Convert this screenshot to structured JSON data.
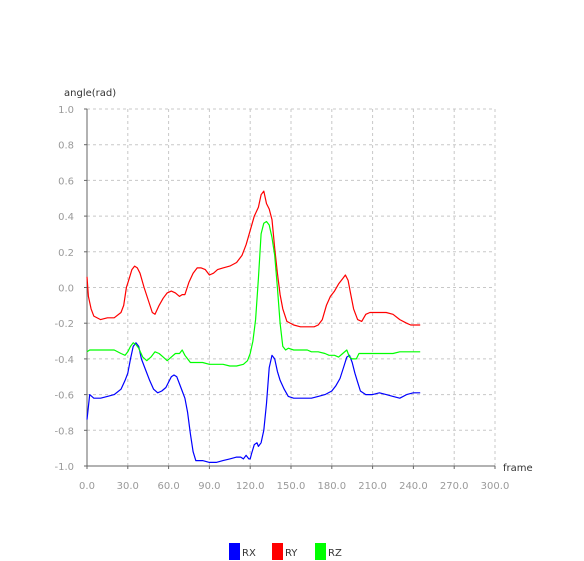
{
  "chart_data": {
    "type": "line",
    "xlabel": "frame",
    "ylabel": "angle(rad)",
    "xlim": [
      0,
      300
    ],
    "ylim": [
      -1.0,
      1.0
    ],
    "x_ticks": [
      "0.0",
      "30.0",
      "60.0",
      "90.0",
      "120.0",
      "150.0",
      "180.0",
      "210.0",
      "240.0",
      "270.0",
      "300.0"
    ],
    "y_ticks": [
      "-1.0",
      "-0.8",
      "-0.6",
      "-0.4",
      "-0.2",
      "0.0",
      "0.2",
      "0.4",
      "0.6",
      "0.8",
      "1.0"
    ],
    "grid": true,
    "legend_position": "bottom",
    "series": [
      {
        "name": "RX",
        "color": "#0000ff",
        "points": [
          [
            0,
            -0.74
          ],
          [
            2,
            -0.6
          ],
          [
            5,
            -0.62
          ],
          [
            10,
            -0.62
          ],
          [
            15,
            -0.61
          ],
          [
            20,
            -0.6
          ],
          [
            25,
            -0.57
          ],
          [
            28,
            -0.52
          ],
          [
            30,
            -0.48
          ],
          [
            32,
            -0.4
          ],
          [
            34,
            -0.33
          ],
          [
            36,
            -0.31
          ],
          [
            38,
            -0.33
          ],
          [
            40,
            -0.4
          ],
          [
            43,
            -0.46
          ],
          [
            46,
            -0.52
          ],
          [
            49,
            -0.57
          ],
          [
            52,
            -0.59
          ],
          [
            55,
            -0.58
          ],
          [
            58,
            -0.56
          ],
          [
            60,
            -0.53
          ],
          [
            62,
            -0.5
          ],
          [
            64,
            -0.49
          ],
          [
            66,
            -0.5
          ],
          [
            68,
            -0.54
          ],
          [
            70,
            -0.58
          ],
          [
            72,
            -0.62
          ],
          [
            74,
            -0.7
          ],
          [
            76,
            -0.82
          ],
          [
            78,
            -0.92
          ],
          [
            80,
            -0.97
          ],
          [
            85,
            -0.97
          ],
          [
            90,
            -0.98
          ],
          [
            95,
            -0.98
          ],
          [
            100,
            -0.97
          ],
          [
            105,
            -0.96
          ],
          [
            110,
            -0.95
          ],
          [
            113,
            -0.95
          ],
          [
            115,
            -0.96
          ],
          [
            117,
            -0.94
          ],
          [
            119,
            -0.96
          ],
          [
            120,
            -0.96
          ],
          [
            121,
            -0.93
          ],
          [
            123,
            -0.88
          ],
          [
            125,
            -0.87
          ],
          [
            126,
            -0.89
          ],
          [
            128,
            -0.87
          ],
          [
            130,
            -0.8
          ],
          [
            132,
            -0.65
          ],
          [
            134,
            -0.45
          ],
          [
            136,
            -0.38
          ],
          [
            138,
            -0.4
          ],
          [
            140,
            -0.47
          ],
          [
            142,
            -0.52
          ],
          [
            145,
            -0.57
          ],
          [
            148,
            -0.61
          ],
          [
            152,
            -0.62
          ],
          [
            156,
            -0.62
          ],
          [
            160,
            -0.62
          ],
          [
            165,
            -0.62
          ],
          [
            170,
            -0.61
          ],
          [
            175,
            -0.6
          ],
          [
            180,
            -0.58
          ],
          [
            183,
            -0.55
          ],
          [
            186,
            -0.51
          ],
          [
            189,
            -0.44
          ],
          [
            191,
            -0.39
          ],
          [
            193,
            -0.38
          ],
          [
            195,
            -0.42
          ],
          [
            197,
            -0.48
          ],
          [
            199,
            -0.53
          ],
          [
            201,
            -0.58
          ],
          [
            205,
            -0.6
          ],
          [
            210,
            -0.6
          ],
          [
            215,
            -0.59
          ],
          [
            220,
            -0.6
          ],
          [
            225,
            -0.61
          ],
          [
            230,
            -0.62
          ],
          [
            235,
            -0.6
          ],
          [
            240,
            -0.59
          ],
          [
            245,
            -0.59
          ]
        ]
      },
      {
        "name": "RY",
        "color": "#ff0000",
        "points": [
          [
            0,
            0.06
          ],
          [
            1,
            -0.05
          ],
          [
            3,
            -0.12
          ],
          [
            5,
            -0.16
          ],
          [
            10,
            -0.18
          ],
          [
            15,
            -0.17
          ],
          [
            20,
            -0.17
          ],
          [
            25,
            -0.14
          ],
          [
            27,
            -0.1
          ],
          [
            29,
            0.0
          ],
          [
            31,
            0.05
          ],
          [
            33,
            0.1
          ],
          [
            35,
            0.12
          ],
          [
            37,
            0.11
          ],
          [
            39,
            0.08
          ],
          [
            42,
            0.0
          ],
          [
            45,
            -0.07
          ],
          [
            48,
            -0.14
          ],
          [
            50,
            -0.15
          ],
          [
            53,
            -0.1
          ],
          [
            56,
            -0.06
          ],
          [
            59,
            -0.03
          ],
          [
            62,
            -0.02
          ],
          [
            65,
            -0.03
          ],
          [
            68,
            -0.05
          ],
          [
            70,
            -0.04
          ],
          [
            72,
            -0.04
          ],
          [
            75,
            0.03
          ],
          [
            78,
            0.08
          ],
          [
            81,
            0.11
          ],
          [
            84,
            0.11
          ],
          [
            87,
            0.1
          ],
          [
            90,
            0.07
          ],
          [
            93,
            0.08
          ],
          [
            96,
            0.1
          ],
          [
            100,
            0.11
          ],
          [
            105,
            0.12
          ],
          [
            110,
            0.14
          ],
          [
            114,
            0.18
          ],
          [
            117,
            0.24
          ],
          [
            120,
            0.32
          ],
          [
            123,
            0.4
          ],
          [
            126,
            0.45
          ],
          [
            128,
            0.52
          ],
          [
            130,
            0.54
          ],
          [
            132,
            0.47
          ],
          [
            134,
            0.44
          ],
          [
            136,
            0.38
          ],
          [
            138,
            0.22
          ],
          [
            140,
            0.08
          ],
          [
            142,
            -0.04
          ],
          [
            144,
            -0.12
          ],
          [
            147,
            -0.19
          ],
          [
            152,
            -0.21
          ],
          [
            157,
            -0.22
          ],
          [
            162,
            -0.22
          ],
          [
            167,
            -0.22
          ],
          [
            170,
            -0.21
          ],
          [
            173,
            -0.18
          ],
          [
            176,
            -0.1
          ],
          [
            179,
            -0.05
          ],
          [
            182,
            -0.02
          ],
          [
            185,
            0.02
          ],
          [
            188,
            0.05
          ],
          [
            190,
            0.07
          ],
          [
            192,
            0.04
          ],
          [
            194,
            -0.04
          ],
          [
            196,
            -0.12
          ],
          [
            199,
            -0.18
          ],
          [
            202,
            -0.19
          ],
          [
            205,
            -0.15
          ],
          [
            208,
            -0.14
          ],
          [
            212,
            -0.14
          ],
          [
            216,
            -0.14
          ],
          [
            220,
            -0.14
          ],
          [
            225,
            -0.15
          ],
          [
            230,
            -0.18
          ],
          [
            235,
            -0.2
          ],
          [
            238,
            -0.21
          ],
          [
            245,
            -0.21
          ]
        ]
      },
      {
        "name": "RZ",
        "color": "#00ff00",
        "points": [
          [
            0,
            -0.36
          ],
          [
            2,
            -0.35
          ],
          [
            5,
            -0.35
          ],
          [
            10,
            -0.35
          ],
          [
            15,
            -0.35
          ],
          [
            20,
            -0.35
          ],
          [
            25,
            -0.37
          ],
          [
            28,
            -0.38
          ],
          [
            30,
            -0.36
          ],
          [
            32,
            -0.33
          ],
          [
            34,
            -0.31
          ],
          [
            36,
            -0.32
          ],
          [
            38,
            -0.34
          ],
          [
            41,
            -0.39
          ],
          [
            44,
            -0.41
          ],
          [
            47,
            -0.39
          ],
          [
            50,
            -0.36
          ],
          [
            53,
            -0.37
          ],
          [
            56,
            -0.39
          ],
          [
            59,
            -0.41
          ],
          [
            62,
            -0.39
          ],
          [
            65,
            -0.37
          ],
          [
            68,
            -0.37
          ],
          [
            70,
            -0.35
          ],
          [
            72,
            -0.38
          ],
          [
            74,
            -0.4
          ],
          [
            76,
            -0.42
          ],
          [
            80,
            -0.42
          ],
          [
            85,
            -0.42
          ],
          [
            90,
            -0.43
          ],
          [
            95,
            -0.43
          ],
          [
            100,
            -0.43
          ],
          [
            105,
            -0.44
          ],
          [
            110,
            -0.44
          ],
          [
            115,
            -0.43
          ],
          [
            118,
            -0.41
          ],
          [
            120,
            -0.37
          ],
          [
            122,
            -0.3
          ],
          [
            124,
            -0.18
          ],
          [
            126,
            0.05
          ],
          [
            128,
            0.3
          ],
          [
            130,
            0.36
          ],
          [
            132,
            0.37
          ],
          [
            134,
            0.35
          ],
          [
            136,
            0.28
          ],
          [
            138,
            0.18
          ],
          [
            140,
            0.0
          ],
          [
            142,
            -0.2
          ],
          [
            144,
            -0.33
          ],
          [
            146,
            -0.35
          ],
          [
            148,
            -0.34
          ],
          [
            152,
            -0.35
          ],
          [
            157,
            -0.35
          ],
          [
            162,
            -0.35
          ],
          [
            165,
            -0.36
          ],
          [
            170,
            -0.36
          ],
          [
            175,
            -0.37
          ],
          [
            178,
            -0.38
          ],
          [
            182,
            -0.38
          ],
          [
            185,
            -0.39
          ],
          [
            188,
            -0.37
          ],
          [
            191,
            -0.35
          ],
          [
            193,
            -0.39
          ],
          [
            195,
            -0.4
          ],
          [
            198,
            -0.4
          ],
          [
            200,
            -0.37
          ],
          [
            205,
            -0.37
          ],
          [
            210,
            -0.37
          ],
          [
            215,
            -0.37
          ],
          [
            220,
            -0.37
          ],
          [
            225,
            -0.37
          ],
          [
            230,
            -0.36
          ],
          [
            235,
            -0.36
          ],
          [
            240,
            -0.36
          ],
          [
            245,
            -0.36
          ]
        ]
      }
    ]
  }
}
